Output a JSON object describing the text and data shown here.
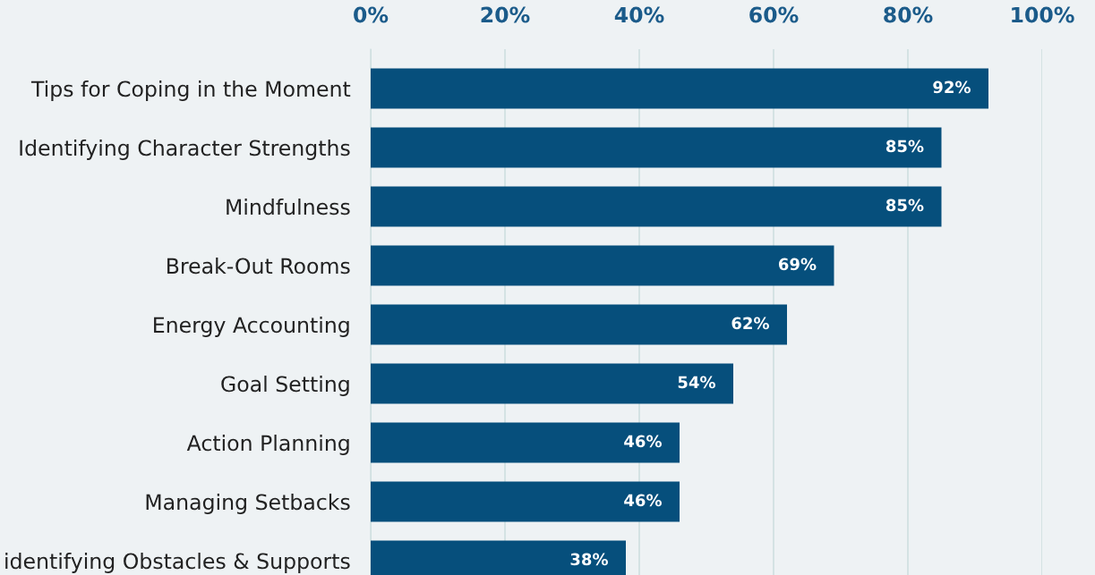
{
  "chart_data": {
    "type": "bar",
    "orientation": "horizontal",
    "categories": [
      "Tips for Coping in the Moment",
      "Identifying Character Strengths",
      "Mindfulness",
      "Break-Out Rooms",
      "Energy Accounting",
      "Goal Setting",
      "Action Planning",
      "Managing Setbacks",
      "identifying Obstacles & Supports"
    ],
    "values": [
      92,
      85,
      85,
      69,
      62,
      54,
      46,
      46,
      38
    ],
    "value_labels": [
      "92%",
      "85%",
      "85%",
      "69%",
      "62%",
      "54%",
      "46%",
      "46%",
      "38%"
    ],
    "color": "#064f7c",
    "xlim": [
      0,
      100
    ],
    "xticks": [
      {
        "value": 0,
        "label": "0%"
      },
      {
        "value": 20,
        "label": "20%"
      },
      {
        "value": 40,
        "label": "40%"
      },
      {
        "value": 60,
        "label": "60%"
      },
      {
        "value": 80,
        "label": "80%"
      },
      {
        "value": 100,
        "label": "100%"
      }
    ],
    "grid": "x"
  }
}
